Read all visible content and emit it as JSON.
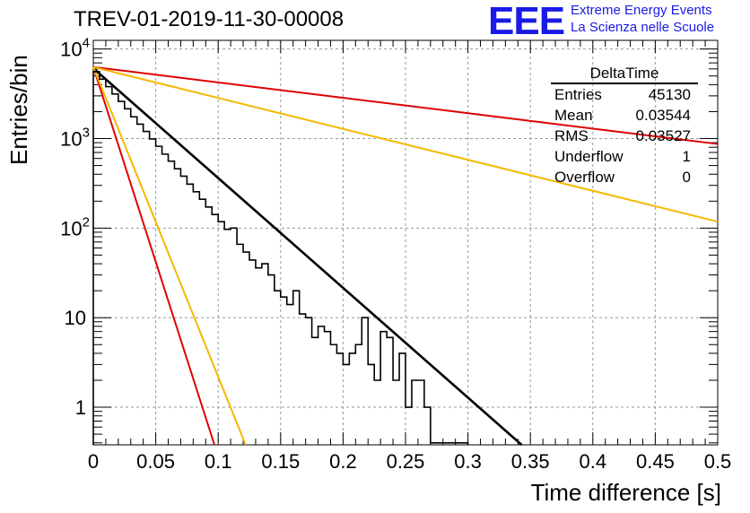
{
  "title": "TREV-01-2019-11-30-00008",
  "logo": {
    "mark": "EEE",
    "line1": "Extreme Energy Events",
    "line2": "La Scienza nelle Scuole"
  },
  "stats_box": {
    "name": "DeltaTime",
    "rows": [
      {
        "label": "Entries",
        "value": "45130"
      },
      {
        "label": "Mean",
        "value": "0.03544"
      },
      {
        "label": "RMS",
        "value": "0.03527"
      },
      {
        "label": "Underflow",
        "value": "1"
      },
      {
        "label": "Overflow",
        "value": "0"
      }
    ]
  },
  "chart_data": {
    "type": "histogram",
    "xlabel": "Time difference [s]",
    "ylabel": "Entries/bin",
    "xlim": [
      0,
      0.5
    ],
    "ylim": [
      0.38,
      12500
    ],
    "y_scale": "log",
    "grid": true,
    "x_ticks": [
      "0",
      "0.05",
      "0.1",
      "0.15",
      "0.2",
      "0.25",
      "0.3",
      "0.35",
      "0.4",
      "0.45",
      "0.5"
    ],
    "y_ticks": [
      {
        "value": 1,
        "base": "1",
        "exp": ""
      },
      {
        "value": 10,
        "base": "10",
        "exp": ""
      },
      {
        "value": 100,
        "base": "10",
        "exp": "2"
      },
      {
        "value": 1000,
        "base": "10",
        "exp": "3"
      },
      {
        "value": 10000,
        "base": "10",
        "exp": "4"
      }
    ],
    "histogram": {
      "bin_width": 0.005,
      "x_start": 0,
      "color": "#000000",
      "counts": [
        5600,
        4600,
        3800,
        3150,
        2600,
        2150,
        1750,
        1450,
        1200,
        990,
        820,
        670,
        560,
        460,
        380,
        310,
        255,
        210,
        172,
        142,
        118,
        97,
        100,
        66,
        54,
        44,
        36,
        40,
        30,
        20,
        17,
        14,
        20,
        11,
        10,
        6,
        8,
        7,
        5,
        4,
        3,
        4,
        5,
        10,
        3,
        2,
        7,
        6,
        2,
        4,
        1,
        2,
        2,
        1,
        0.4,
        0.4,
        0.4,
        0.4,
        0.4,
        0.4,
        0,
        0,
        0,
        0,
        0,
        0,
        0,
        0,
        0,
        0,
        0,
        0,
        0,
        0,
        0,
        0,
        0,
        0,
        0,
        0,
        0,
        0,
        0,
        0,
        0,
        0,
        0,
        0,
        0,
        0,
        0,
        0,
        0,
        0,
        0,
        0,
        0,
        0,
        0,
        0
      ]
    },
    "fit_lines": [
      {
        "color": "#000000",
        "x": [
          0,
          0.343
        ],
        "y": [
          6100,
          0.38
        ]
      },
      {
        "color": "#e00000",
        "x": [
          0,
          0.5
        ],
        "y": [
          6300,
          870
        ]
      },
      {
        "color": "#f5b800",
        "x": [
          0,
          0.5
        ],
        "y": [
          6300,
          118
        ]
      },
      {
        "color": "#e00000",
        "x": [
          0,
          0.097
        ],
        "y": [
          6300,
          0.38
        ]
      },
      {
        "color": "#f5b800",
        "x": [
          0,
          0.122
        ],
        "y": [
          6300,
          0.38
        ]
      }
    ]
  }
}
